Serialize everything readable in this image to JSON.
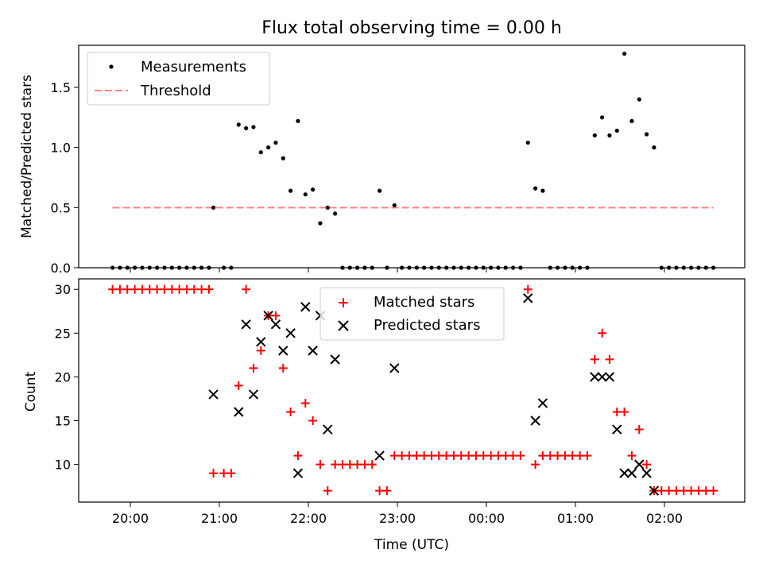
{
  "chart_data": [
    {
      "type": "scatter",
      "title": "Flux total observing time = 0.00 h",
      "ylabel": "Matched/Predicted stars",
      "xlabel": "",
      "ylim": [
        0,
        1.85
      ],
      "yticks": [
        0.0,
        0.5,
        1.0,
        1.5
      ],
      "ytick_labels": [
        "0.0",
        "0.5",
        "1.0",
        "1.5"
      ],
      "legend": {
        "position": "top-left",
        "entries": [
          "Measurements",
          "Threshold"
        ]
      },
      "threshold": {
        "name": "Threshold",
        "value": 0.5,
        "x_range": [
          "19:48",
          "02:33"
        ],
        "color": "#ff8080"
      },
      "series": [
        {
          "name": "Measurements",
          "color": "#000000",
          "points": [
            [
              "19:48",
              0
            ],
            [
              "19:53",
              0
            ],
            [
              "19:58",
              0
            ],
            [
              "20:03",
              0
            ],
            [
              "20:08",
              0
            ],
            [
              "20:13",
              0
            ],
            [
              "20:18",
              0
            ],
            [
              "20:23",
              0
            ],
            [
              "20:28",
              0
            ],
            [
              "20:33",
              0
            ],
            [
              "20:38",
              0
            ],
            [
              "20:43",
              0
            ],
            [
              "20:48",
              0
            ],
            [
              "20:53",
              0
            ],
            [
              "20:56",
              0.5
            ],
            [
              "21:03",
              0
            ],
            [
              "21:08",
              0
            ],
            [
              "21:13",
              1.19
            ],
            [
              "21:18",
              1.16
            ],
            [
              "21:23",
              1.17
            ],
            [
              "21:28",
              0.96
            ],
            [
              "21:33",
              1.0
            ],
            [
              "21:38",
              1.04
            ],
            [
              "21:43",
              0.91
            ],
            [
              "21:48",
              0.64
            ],
            [
              "21:53",
              1.22
            ],
            [
              "21:58",
              0.61
            ],
            [
              "22:03",
              0.65
            ],
            [
              "22:08",
              0.37
            ],
            [
              "22:13",
              0.5
            ],
            [
              "22:18",
              0.45
            ],
            [
              "22:23",
              0
            ],
            [
              "22:28",
              0
            ],
            [
              "22:33",
              0
            ],
            [
              "22:38",
              0
            ],
            [
              "22:43",
              0
            ],
            [
              "22:48",
              0.64
            ],
            [
              "22:53",
              0
            ],
            [
              "22:58",
              0.52
            ],
            [
              "23:03",
              0
            ],
            [
              "23:08",
              0
            ],
            [
              "23:13",
              0
            ],
            [
              "23:18",
              0
            ],
            [
              "23:23",
              0
            ],
            [
              "23:28",
              0
            ],
            [
              "23:33",
              0
            ],
            [
              "23:38",
              0
            ],
            [
              "23:43",
              0
            ],
            [
              "23:48",
              0
            ],
            [
              "23:53",
              0
            ],
            [
              "23:58",
              0
            ],
            [
              "00:03",
              0
            ],
            [
              "00:08",
              0
            ],
            [
              "00:13",
              0
            ],
            [
              "00:18",
              0
            ],
            [
              "00:23",
              0
            ],
            [
              "00:28",
              1.04
            ],
            [
              "00:33",
              0.66
            ],
            [
              "00:38",
              0.64
            ],
            [
              "00:43",
              0
            ],
            [
              "00:48",
              0
            ],
            [
              "00:53",
              0
            ],
            [
              "00:58",
              0
            ],
            [
              "01:03",
              0
            ],
            [
              "01:08",
              0
            ],
            [
              "01:13",
              1.1
            ],
            [
              "01:18",
              1.25
            ],
            [
              "01:23",
              1.1
            ],
            [
              "01:28",
              1.14
            ],
            [
              "01:33",
              1.78
            ],
            [
              "01:38",
              1.22
            ],
            [
              "01:43",
              1.4
            ],
            [
              "01:48",
              1.11
            ],
            [
              "01:53",
              1.0
            ],
            [
              "01:58",
              0
            ],
            [
              "02:03",
              0
            ],
            [
              "02:08",
              0
            ],
            [
              "02:13",
              0
            ],
            [
              "02:18",
              0
            ],
            [
              "02:23",
              0
            ],
            [
              "02:28",
              0
            ],
            [
              "02:33",
              0
            ]
          ]
        }
      ]
    },
    {
      "type": "scatter",
      "title": "",
      "ylabel": "Count",
      "xlabel": "Time (UTC)",
      "ylim": [
        5.7,
        31.2
      ],
      "yticks": [
        10,
        15,
        20,
        25,
        30
      ],
      "ytick_labels": [
        "10",
        "15",
        "20",
        "25",
        "30"
      ],
      "xtick_labels": [
        "20:00",
        "21:00",
        "22:00",
        "23:00",
        "00:00",
        "01:00",
        "02:00"
      ],
      "legend": {
        "position": "top-center",
        "entries": [
          "Matched stars",
          "Predicted stars"
        ]
      },
      "series": [
        {
          "name": "Matched stars",
          "color": "#ff0000",
          "marker": "plus",
          "points": [
            [
              "19:48",
              30
            ],
            [
              "19:53",
              30
            ],
            [
              "19:58",
              30
            ],
            [
              "20:03",
              30
            ],
            [
              "20:08",
              30
            ],
            [
              "20:13",
              30
            ],
            [
              "20:18",
              30
            ],
            [
              "20:23",
              30
            ],
            [
              "20:28",
              30
            ],
            [
              "20:33",
              30
            ],
            [
              "20:38",
              30
            ],
            [
              "20:43",
              30
            ],
            [
              "20:48",
              30
            ],
            [
              "20:53",
              30
            ],
            [
              "20:56",
              9
            ],
            [
              "21:03",
              9
            ],
            [
              "21:08",
              9
            ],
            [
              "21:13",
              19
            ],
            [
              "21:18",
              30
            ],
            [
              "21:23",
              21
            ],
            [
              "21:28",
              23
            ],
            [
              "21:33",
              27
            ],
            [
              "21:38",
              27
            ],
            [
              "21:43",
              21
            ],
            [
              "21:48",
              16
            ],
            [
              "21:53",
              11
            ],
            [
              "21:58",
              17
            ],
            [
              "22:03",
              15
            ],
            [
              "22:08",
              10
            ],
            [
              "22:13",
              7
            ],
            [
              "22:18",
              10
            ],
            [
              "22:23",
              10
            ],
            [
              "22:28",
              10
            ],
            [
              "22:33",
              10
            ],
            [
              "22:38",
              10
            ],
            [
              "22:43",
              10
            ],
            [
              "22:48",
              7
            ],
            [
              "22:53",
              7
            ],
            [
              "22:58",
              11
            ],
            [
              "23:03",
              11
            ],
            [
              "23:08",
              11
            ],
            [
              "23:13",
              11
            ],
            [
              "23:18",
              11
            ],
            [
              "23:23",
              11
            ],
            [
              "23:28",
              11
            ],
            [
              "23:33",
              11
            ],
            [
              "23:38",
              11
            ],
            [
              "23:43",
              11
            ],
            [
              "23:48",
              11
            ],
            [
              "23:53",
              11
            ],
            [
              "23:58",
              11
            ],
            [
              "00:03",
              11
            ],
            [
              "00:08",
              11
            ],
            [
              "00:13",
              11
            ],
            [
              "00:18",
              11
            ],
            [
              "00:23",
              11
            ],
            [
              "00:28",
              30
            ],
            [
              "00:33",
              10
            ],
            [
              "00:38",
              11
            ],
            [
              "00:43",
              11
            ],
            [
              "00:48",
              11
            ],
            [
              "00:53",
              11
            ],
            [
              "00:58",
              11
            ],
            [
              "01:03",
              11
            ],
            [
              "01:08",
              11
            ],
            [
              "01:13",
              22
            ],
            [
              "01:18",
              25
            ],
            [
              "01:23",
              22
            ],
            [
              "01:28",
              16
            ],
            [
              "01:33",
              16
            ],
            [
              "01:38",
              11
            ],
            [
              "01:43",
              14
            ],
            [
              "01:48",
              10
            ],
            [
              "01:53",
              7
            ],
            [
              "01:58",
              7
            ],
            [
              "02:03",
              7
            ],
            [
              "02:08",
              7
            ],
            [
              "02:13",
              7
            ],
            [
              "02:18",
              7
            ],
            [
              "02:23",
              7
            ],
            [
              "02:28",
              7
            ],
            [
              "02:33",
              7
            ]
          ]
        },
        {
          "name": "Predicted stars",
          "color": "#000000",
          "marker": "x",
          "points": [
            [
              "20:56",
              18
            ],
            [
              "21:13",
              16
            ],
            [
              "21:18",
              26
            ],
            [
              "21:23",
              18
            ],
            [
              "21:28",
              24
            ],
            [
              "21:33",
              27
            ],
            [
              "21:38",
              26
            ],
            [
              "21:43",
              23
            ],
            [
              "21:48",
              25
            ],
            [
              "21:53",
              9
            ],
            [
              "21:58",
              28
            ],
            [
              "22:03",
              23
            ],
            [
              "22:08",
              27
            ],
            [
              "22:13",
              14
            ],
            [
              "22:18",
              22
            ],
            [
              "22:48",
              11
            ],
            [
              "22:58",
              21
            ],
            [
              "00:28",
              29
            ],
            [
              "00:33",
              15
            ],
            [
              "00:38",
              17
            ],
            [
              "01:13",
              20
            ],
            [
              "01:18",
              20
            ],
            [
              "01:23",
              20
            ],
            [
              "01:28",
              14
            ],
            [
              "01:33",
              9
            ],
            [
              "01:38",
              9
            ],
            [
              "01:43",
              10
            ],
            [
              "01:48",
              9
            ],
            [
              "01:53",
              7
            ]
          ]
        }
      ]
    }
  ]
}
